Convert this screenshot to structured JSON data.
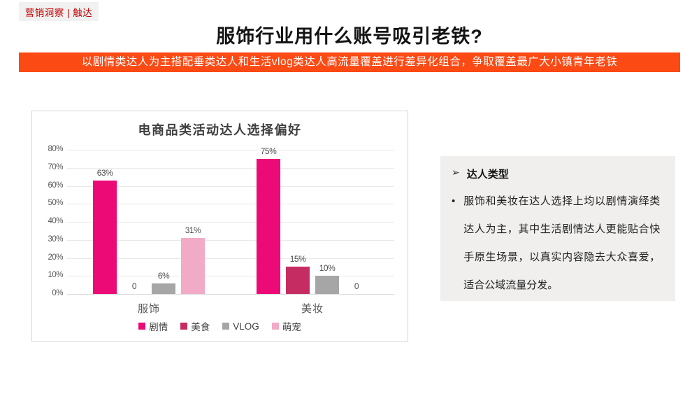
{
  "slide": {
    "tag": "营销洞察 | 触达",
    "tag_color": "#C00000",
    "title": "服饰行业用什么账号吸引老铁?",
    "banner": {
      "text": "以剧情类达人为主搭配垂类达人和生活vlog类达人高流量覆盖进行差异化组合，争取覆盖最广大小镇青年老铁",
      "bg_color": "#FB4A14",
      "text_color": "#FFFFFF"
    }
  },
  "chart_data": {
    "type": "bar",
    "title": "电商品类活动达人选择偏好",
    "categories": [
      "服饰",
      "美妆"
    ],
    "series": [
      {
        "name": "剧情",
        "color": "#EC0A77",
        "values": [
          63,
          75
        ]
      },
      {
        "name": "美食",
        "color": "#C52D62",
        "values": [
          0,
          15
        ]
      },
      {
        "name": "VLOG",
        "color": "#A6A6A6",
        "values": [
          6,
          10
        ]
      },
      {
        "name": "萌宠",
        "color": "#F2ABC6",
        "values": [
          31,
          0
        ]
      }
    ],
    "ylim": [
      0,
      80
    ],
    "ytick_step": 10,
    "ytick_suffix": "%",
    "value_suffix": "%",
    "zero_label": "0",
    "grid": true,
    "legend_position": "bottom"
  },
  "panel": {
    "heading_bullet": "➢",
    "heading": "达人类型",
    "bullet": "•",
    "text": "服饰和美妆在达人选择上均以剧情演绎类达人为主，其中生活剧情达人更能贴合快手原生场景，以真实内容隐去大众喜爱，适合公域流量分发。"
  }
}
